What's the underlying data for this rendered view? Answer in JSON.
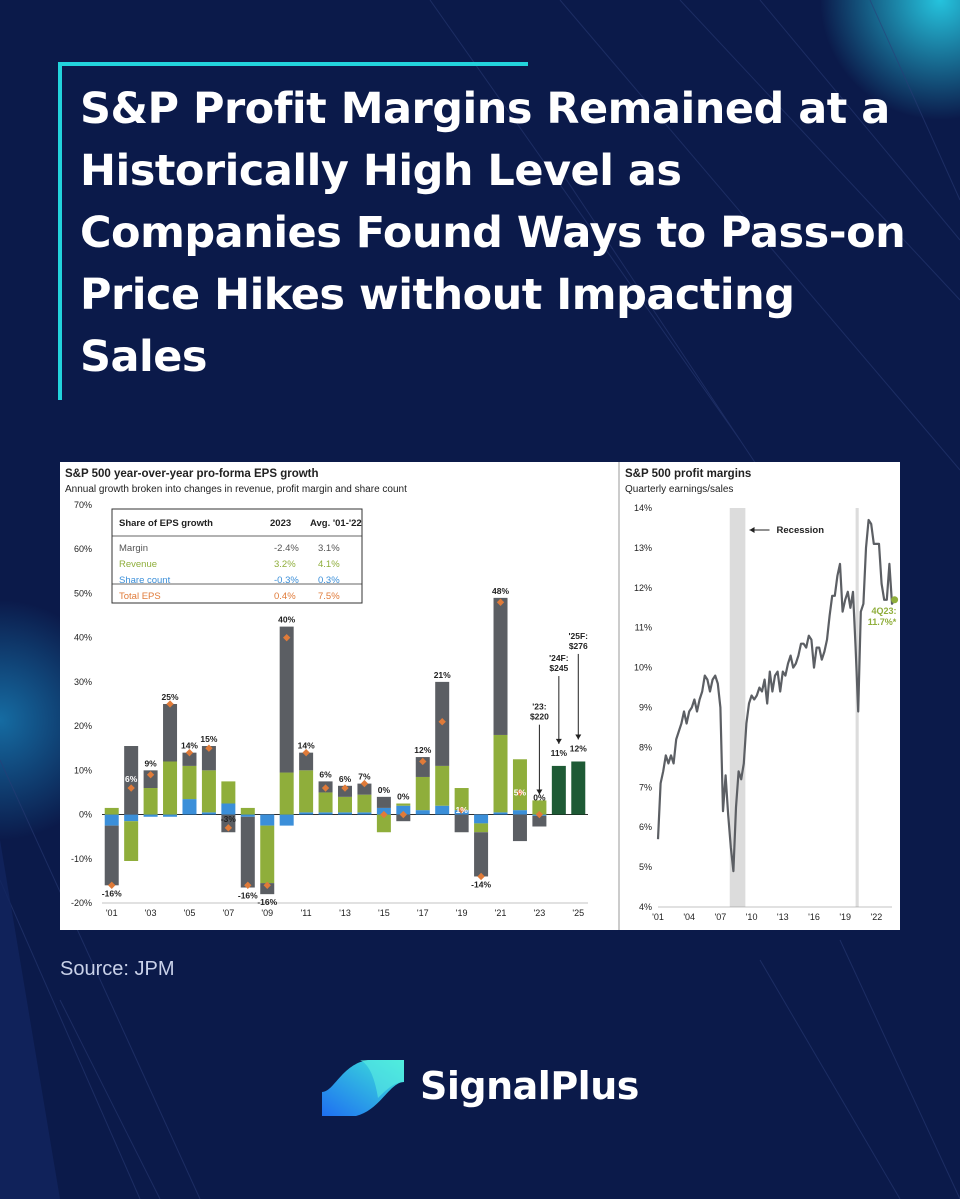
{
  "headline": "S&P Profit Margins Remained at a Historically High Level as Companies Found Ways to Pass-on Price Hikes without Impacting Sales",
  "source": "Source: JPM",
  "brand": {
    "name": "SignalPlus"
  },
  "colors": {
    "background": "#0b1a4a",
    "accent": "#22d3dc",
    "margin": "#5b5e63",
    "revenue": "#8fae3b",
    "share": "#3b8fd9",
    "total": "#e07b39",
    "forecast": "#1e5a35",
    "recession": "#dcdcdc",
    "line": "#5c5f64",
    "latest": "#8fae3b"
  },
  "chart_data": [
    {
      "type": "bar",
      "title": "S&P 500 year-over-year pro-forma EPS growth",
      "subtitle": "Annual growth broken into changes in revenue, profit margin and share count",
      "ylim": [
        -20,
        70
      ],
      "y_tick_labels": [
        "70%",
        "60%",
        "50%",
        "40%",
        "30%",
        "20%",
        "10%",
        "0%",
        "-10%",
        "-20%"
      ],
      "x_tick_labels": [
        "'01",
        "'03",
        "'05",
        "'07",
        "'09",
        "'11",
        "'13",
        "'15",
        "'17",
        "'19",
        "'21",
        "'23",
        "'25"
      ],
      "categories": [
        "2001",
        "2002",
        "2003",
        "2004",
        "2005",
        "2006",
        "2007",
        "2008",
        "2009",
        "2010",
        "2011",
        "2012",
        "2013",
        "2014",
        "2015",
        "2016",
        "2017",
        "2018",
        "2019",
        "2020",
        "2021",
        "2022",
        "2023",
        "2024",
        "2025"
      ],
      "series": [
        {
          "name": "Margin",
          "values": [
            -13.5,
            15.5,
            4,
            13,
            3,
            5.5,
            -4,
            -16,
            -2.5,
            33,
            4,
            2.5,
            2.5,
            2.5,
            2.5,
            -1.5,
            4.5,
            19,
            -4,
            -10,
            31,
            -6,
            -2.4,
            null,
            null
          ]
        },
        {
          "name": "Revenue",
          "values": [
            1.5,
            -9,
            6,
            12,
            7.5,
            9.5,
            5,
            1.5,
            -13,
            9.5,
            9.5,
            4.5,
            3.5,
            4,
            -4,
            0.5,
            7.5,
            9,
            5,
            -2,
            17.5,
            11.5,
            3.2,
            null,
            null
          ]
        },
        {
          "name": "Share count",
          "values": [
            -2.5,
            -1.5,
            -0.5,
            -0.5,
            3.5,
            0.5,
            2.5,
            -0.5,
            -2.5,
            -2.5,
            0.5,
            0.5,
            0.5,
            0.5,
            1.5,
            2,
            1,
            2,
            1,
            -2,
            0.5,
            1,
            -0.3,
            null,
            null
          ]
        },
        {
          "name": "Total EPS",
          "values": [
            -16,
            6,
            9,
            25,
            14,
            15,
            -3,
            -16,
            -16,
            40,
            14,
            6,
            6,
            7,
            0,
            0,
            12,
            21,
            1,
            -14,
            48,
            5,
            0,
            11,
            12
          ]
        },
        {
          "name": "Forecast",
          "values": [
            null,
            null,
            null,
            null,
            null,
            null,
            null,
            null,
            null,
            null,
            null,
            null,
            null,
            null,
            null,
            null,
            null,
            null,
            null,
            null,
            null,
            null,
            null,
            11,
            12
          ]
        }
      ],
      "bar_labels": [
        "-16%",
        "6%",
        "9%",
        "25%",
        "14%",
        "15%",
        "-3%",
        "-16%",
        "-16%",
        "40%",
        "14%",
        "6%",
        "6%",
        "7%",
        "0%",
        "0%",
        "12%",
        "21%",
        "1%",
        "-14%",
        "48%",
        "5%",
        "0%",
        "11%",
        "12%"
      ],
      "forecast_annotations": [
        {
          "line1": "'23:",
          "line2": "$220"
        },
        {
          "line1": "'24F:",
          "line2": "$245"
        },
        {
          "line1": "'25F:",
          "line2": "$276"
        }
      ],
      "inset_table": {
        "header": [
          "Share of EPS growth",
          "2023",
          "Avg. '01-'22"
        ],
        "rows": [
          {
            "label": "Margin",
            "v2023": "-2.4%",
            "avg": "3.1%"
          },
          {
            "label": "Revenue",
            "v2023": "3.2%",
            "avg": "4.1%"
          },
          {
            "label": "Share count",
            "v2023": "-0.3%",
            "avg": "0.3%"
          },
          {
            "label": "Total EPS",
            "v2023": "0.4%",
            "avg": "7.5%"
          }
        ]
      }
    },
    {
      "type": "line",
      "title": "S&P 500 profit margins",
      "subtitle": "Quarterly earnings/sales",
      "ylim": [
        4,
        14
      ],
      "xlim": [
        2001,
        2023.5
      ],
      "y_tick_labels": [
        "14%",
        "13%",
        "12%",
        "11%",
        "10%",
        "9%",
        "8%",
        "7%",
        "6%",
        "5%",
        "4%"
      ],
      "x_ticks": [
        2001,
        2004,
        2007,
        2010,
        2013,
        2016,
        2019,
        2022
      ],
      "x_tick_labels": [
        "'01",
        "'04",
        "'07",
        "'10",
        "'13",
        "'16",
        "'19",
        "'22"
      ],
      "recession_label": "Recession",
      "recessions": [
        [
          2007.9,
          2009.4
        ],
        [
          2020.0,
          2020.3
        ]
      ],
      "latest_label": [
        "4Q23:",
        "11.7%*"
      ],
      "series": [
        {
          "x": [
            2001.0,
            2001.25,
            2001.5,
            2001.75,
            2002.0,
            2002.25,
            2002.5,
            2002.75,
            2003.0,
            2003.25,
            2003.5,
            2003.75,
            2004.0,
            2004.25,
            2004.5,
            2004.75,
            2005.0,
            2005.25,
            2005.5,
            2005.75,
            2006.0,
            2006.25,
            2006.5,
            2006.75,
            2007.0,
            2007.25,
            2007.5,
            2007.75,
            2008.0,
            2008.25,
            2008.5,
            2008.75,
            2009.0,
            2009.25,
            2009.5,
            2009.75,
            2010.0,
            2010.25,
            2010.5,
            2010.75,
            2011.0,
            2011.25,
            2011.5,
            2011.75,
            2012.0,
            2012.25,
            2012.5,
            2012.75,
            2013.0,
            2013.25,
            2013.5,
            2013.75,
            2014.0,
            2014.25,
            2014.5,
            2014.75,
            2015.0,
            2015.25,
            2015.5,
            2015.75,
            2016.0,
            2016.25,
            2016.5,
            2016.75,
            2017.0,
            2017.25,
            2017.5,
            2017.75,
            2018.0,
            2018.25,
            2018.5,
            2018.75,
            2019.0,
            2019.25,
            2019.5,
            2019.75,
            2020.0,
            2020.25,
            2020.5,
            2020.75,
            2021.0,
            2021.25,
            2021.5,
            2021.75,
            2022.0,
            2022.25,
            2022.5,
            2022.75,
            2023.0,
            2023.25,
            2023.5,
            2023.75
          ],
          "values": [
            5.7,
            7.1,
            7.4,
            7.8,
            7.6,
            7.8,
            7.6,
            8.2,
            8.4,
            8.6,
            8.9,
            8.6,
            8.9,
            9.0,
            9.2,
            8.9,
            9.2,
            9.4,
            9.8,
            9.7,
            9.4,
            9.7,
            9.8,
            9.6,
            9.0,
            6.4,
            7.3,
            6.3,
            5.5,
            4.9,
            6.5,
            7.4,
            7.2,
            7.6,
            8.6,
            9.1,
            9.3,
            9.2,
            9.3,
            9.5,
            9.4,
            9.7,
            9.1,
            9.9,
            9.4,
            9.8,
            9.9,
            9.4,
            9.9,
            9.8,
            10.1,
            10.3,
            10.0,
            10.1,
            10.3,
            10.6,
            10.6,
            10.5,
            10.8,
            10.7,
            10.0,
            10.5,
            10.5,
            10.2,
            10.4,
            10.7,
            11.3,
            11.8,
            11.8,
            12.3,
            12.6,
            11.4,
            11.7,
            11.9,
            11.5,
            11.9,
            10.5,
            8.9,
            11.4,
            11.6,
            13.0,
            13.7,
            13.6,
            13.1,
            13.1,
            13.1,
            12.1,
            11.7,
            11.7,
            12.6,
            11.6,
            11.7
          ]
        }
      ]
    }
  ]
}
